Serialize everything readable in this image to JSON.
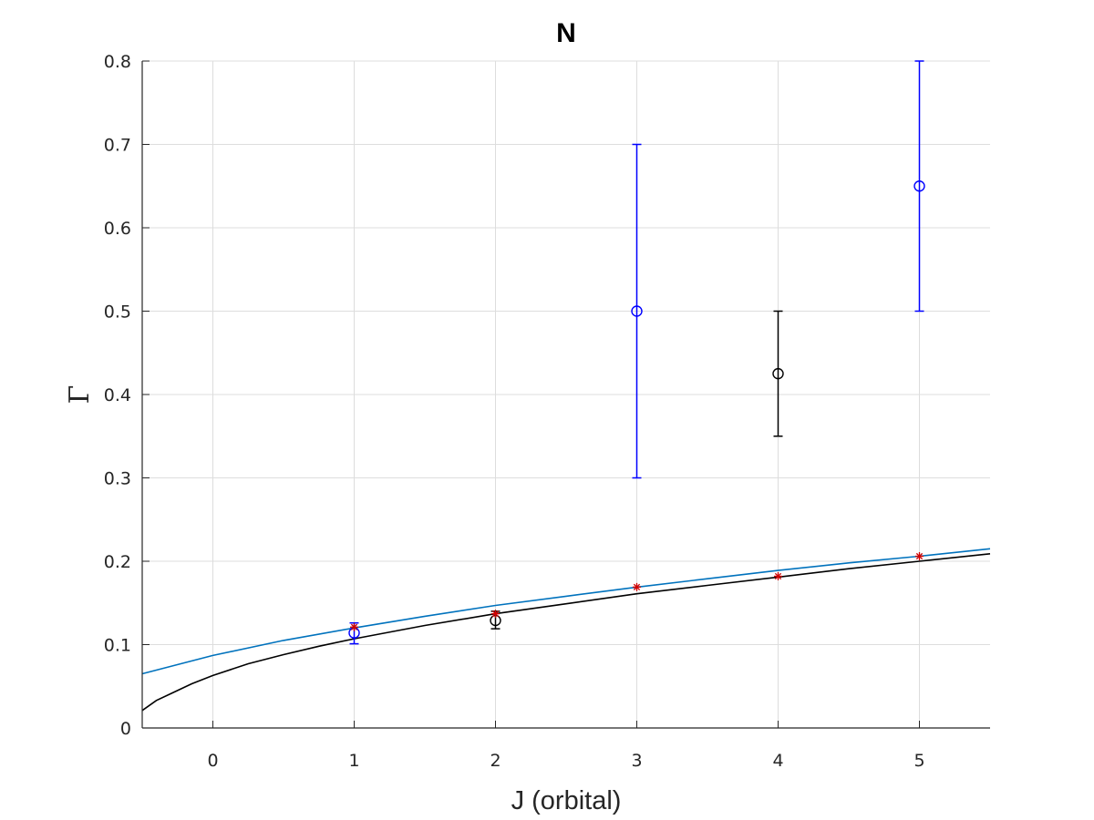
{
  "chart_data": {
    "type": "scatter",
    "title": "N",
    "xlabel": "J (orbital)",
    "ylabel": "Γ",
    "xlim": [
      -0.5,
      5.5
    ],
    "ylim": [
      0,
      0.8
    ],
    "xticks": [
      0,
      1,
      2,
      3,
      4,
      5
    ],
    "xtick_labels": [
      "0",
      "1",
      "2",
      "3",
      "4",
      "5"
    ],
    "yticks": [
      0,
      0.1,
      0.2,
      0.3,
      0.4,
      0.5,
      0.6,
      0.7,
      0.8
    ],
    "ytick_labels": [
      "0",
      "0.1",
      "0.2",
      "0.3",
      "0.4",
      "0.5",
      "0.6",
      "0.7",
      "0.8"
    ],
    "grid": true,
    "legend": "none",
    "series": [
      {
        "kind": "errorbar",
        "marker": "circle",
        "color": "#0000ff",
        "points": [
          {
            "x": 1,
            "y": 0.114,
            "low": 0.101,
            "high": 0.126
          },
          {
            "x": 3,
            "y": 0.5,
            "low": 0.3,
            "high": 0.7
          },
          {
            "x": 5,
            "y": 0.65,
            "low": 0.5,
            "high": 0.8
          }
        ]
      },
      {
        "kind": "errorbar",
        "marker": "circle",
        "color": "#000000",
        "points": [
          {
            "x": 2,
            "y": 0.129,
            "low": 0.119,
            "high": 0.14
          },
          {
            "x": 4,
            "y": 0.425,
            "low": 0.35,
            "high": 0.5
          }
        ]
      },
      {
        "kind": "points",
        "marker": "asterisk",
        "color": "#d00000",
        "points": [
          {
            "x": 1,
            "y": 0.121
          },
          {
            "x": 2,
            "y": 0.137
          },
          {
            "x": 3,
            "y": 0.169
          },
          {
            "x": 4,
            "y": 0.182
          },
          {
            "x": 5,
            "y": 0.206
          }
        ]
      },
      {
        "kind": "curve",
        "color": "#0072bd",
        "x": [
          -0.5,
          0,
          0.5,
          1,
          1.5,
          2,
          2.5,
          3,
          3.5,
          4,
          4.5,
          5,
          5.5
        ],
        "y": [
          0.065,
          0.087,
          0.105,
          0.12,
          0.134,
          0.147,
          0.158,
          0.169,
          0.179,
          0.189,
          0.198,
          0.206,
          0.215
        ]
      },
      {
        "kind": "curve",
        "color": "#000000",
        "x": [
          -0.5,
          -0.4,
          -0.3,
          -0.15,
          0,
          0.25,
          0.5,
          0.75,
          1,
          1.5,
          2,
          2.5,
          3,
          3.5,
          4,
          4.5,
          5,
          5.5
        ],
        "y": [
          0.021,
          0.033,
          0.041,
          0.053,
          0.063,
          0.077,
          0.088,
          0.098,
          0.107,
          0.123,
          0.137,
          0.149,
          0.161,
          0.171,
          0.181,
          0.191,
          0.2,
          0.209
        ]
      }
    ]
  }
}
